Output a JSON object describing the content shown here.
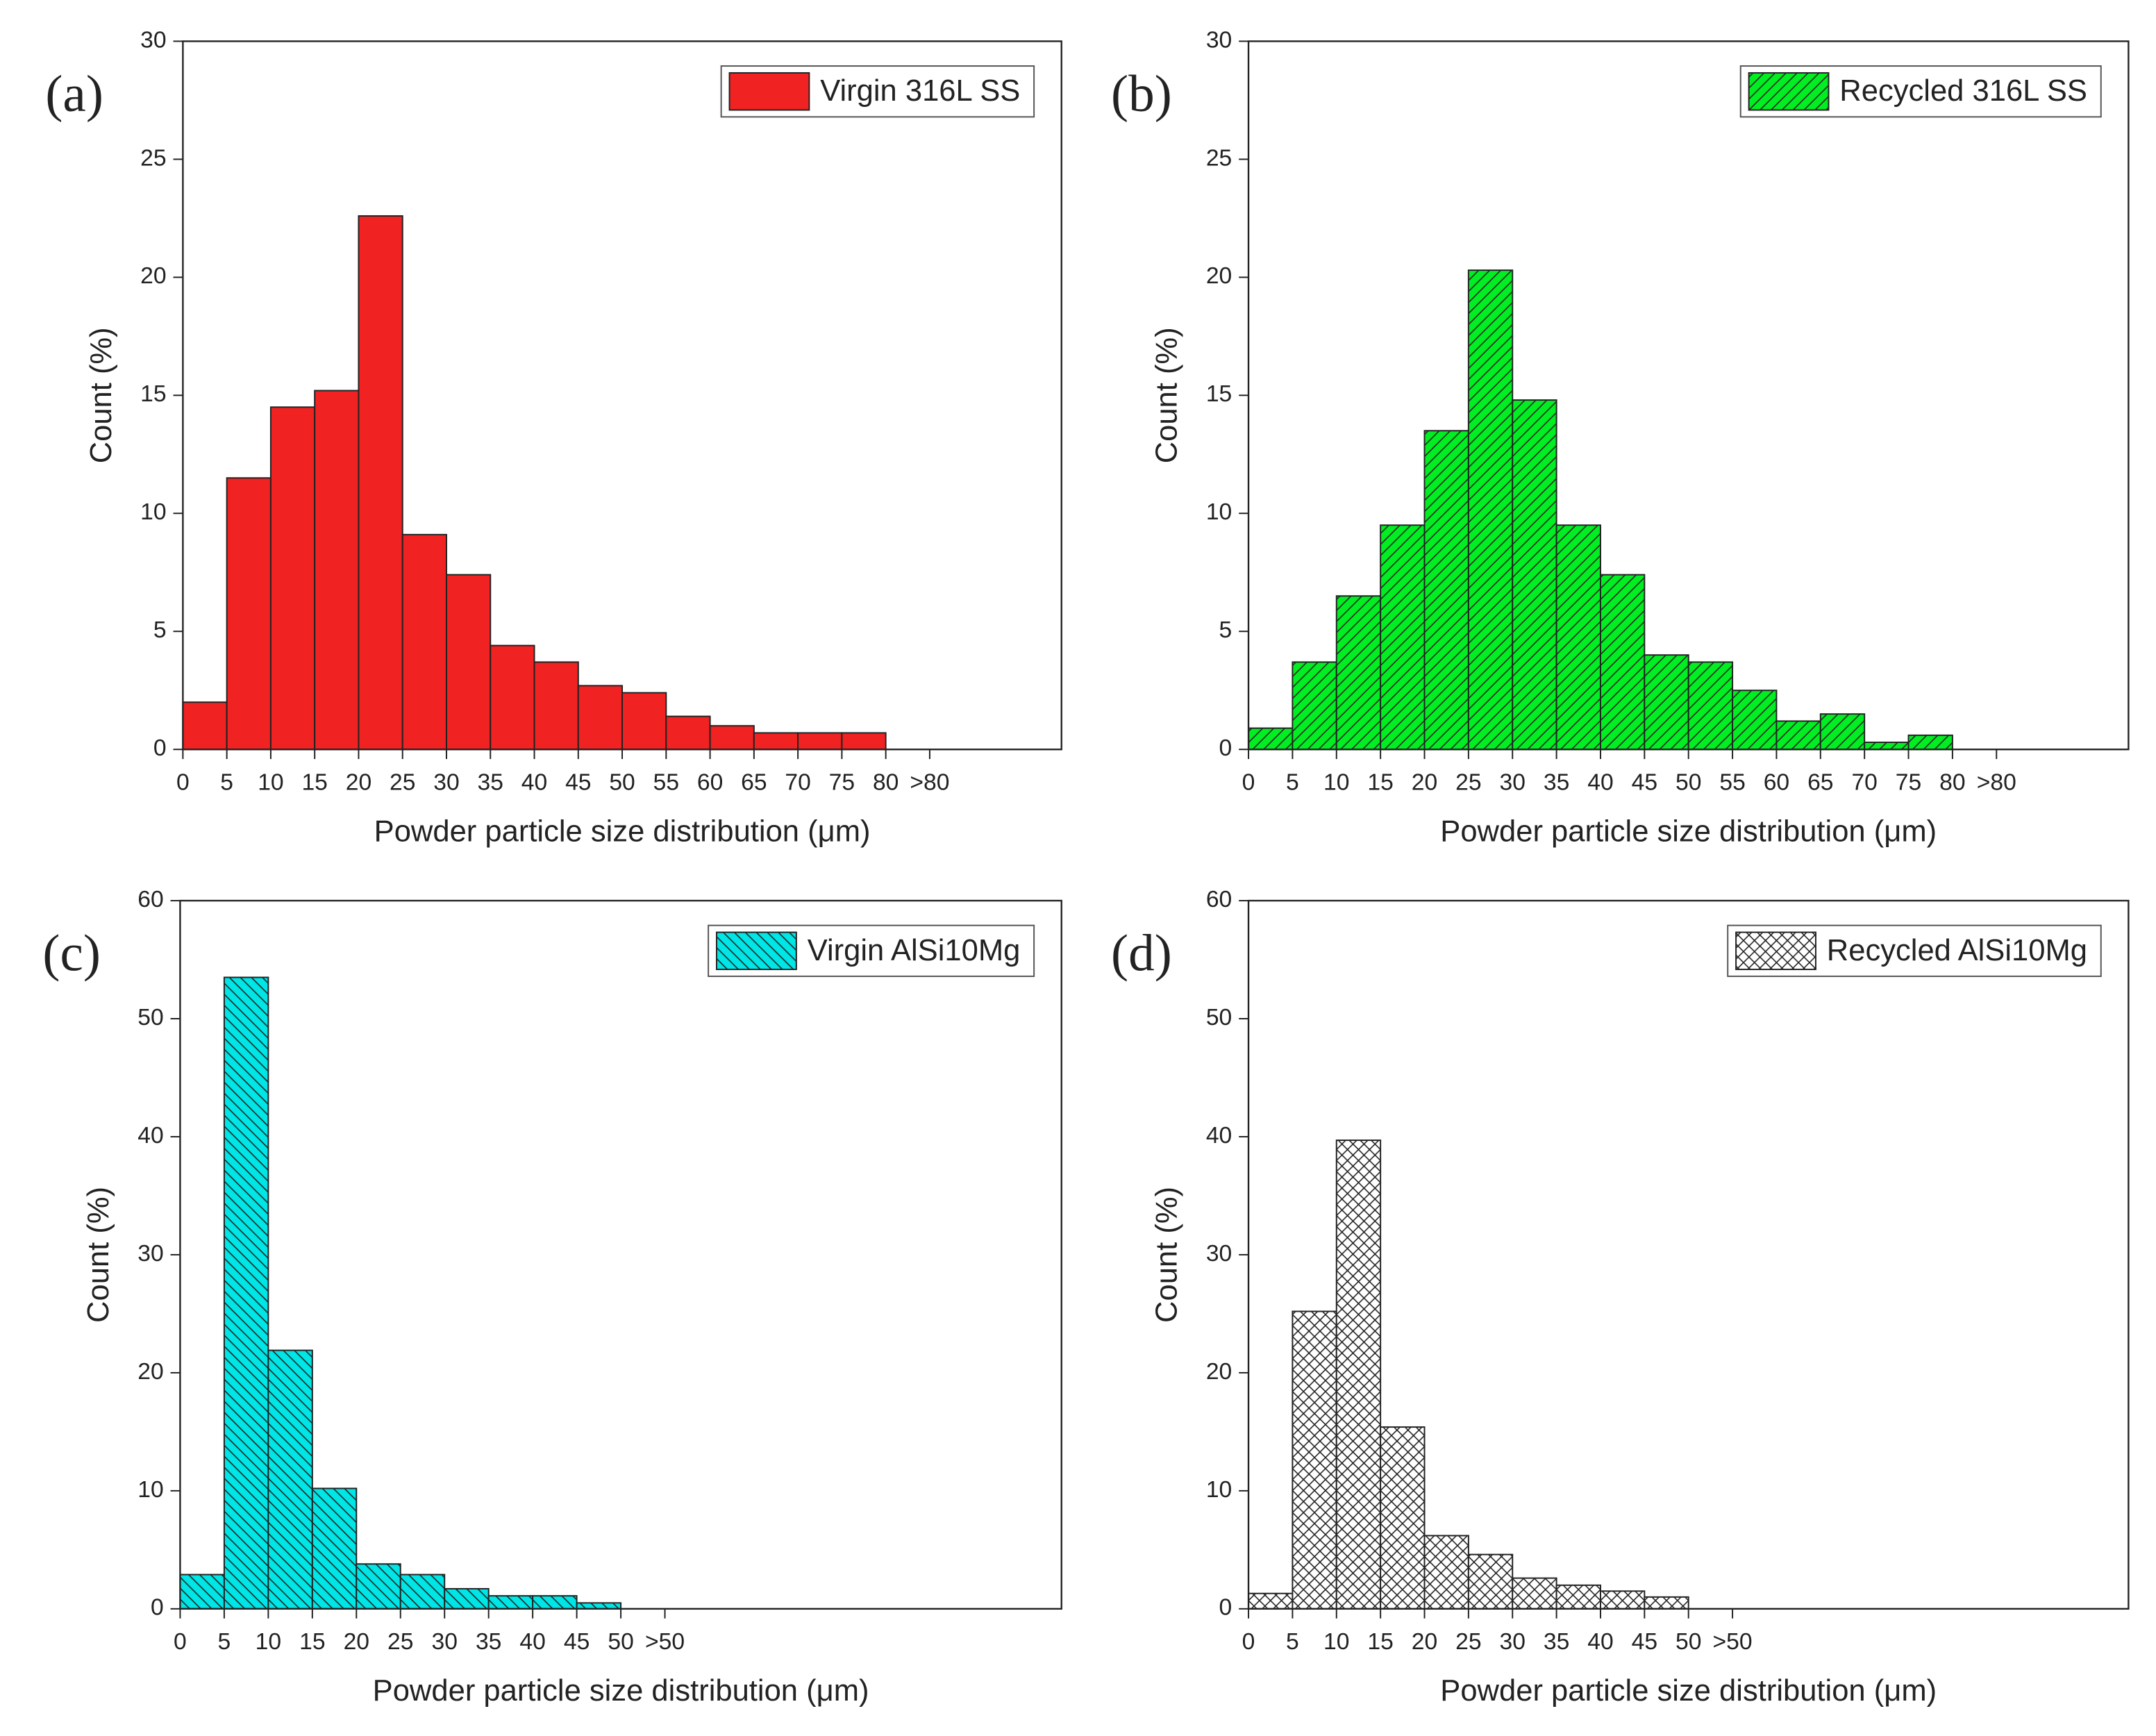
{
  "chart_data": [
    {
      "type": "histogram",
      "panel_label": "(a)",
      "xlabel": "Powder particle size distribution (μm)",
      "ylabel": "Count (%)",
      "bins": [
        0,
        5,
        10,
        15,
        20,
        25,
        30,
        35,
        40,
        45,
        50,
        55,
        60,
        65,
        70,
        75,
        80
      ],
      "series": [
        {
          "name": "Virgin 316L SS",
          "color": "#f02222",
          "hatch": "none",
          "values": [
            2.0,
            11.5,
            14.5,
            15.2,
            22.6,
            9.1,
            7.4,
            4.4,
            3.7,
            2.7,
            2.4,
            1.4,
            1.0,
            0.7,
            0.7,
            0.7
          ]
        }
      ],
      "xlim": [
        0,
        100
      ],
      "ylim": [
        0,
        30
      ],
      "xticks": [
        0,
        5,
        10,
        15,
        20,
        25,
        30,
        35,
        40,
        45,
        50,
        55,
        60,
        65,
        70,
        75,
        80,
        {
          "value": 85,
          "label": ">80"
        }
      ],
      "yticks": [
        0,
        5,
        10,
        15,
        20,
        25,
        30
      ],
      "legend": "upper right"
    },
    {
      "type": "histogram",
      "panel_label": "(b)",
      "xlabel": "Powder particle size distribution (μm)",
      "ylabel": "Count (%)",
      "bins": [
        0,
        5,
        10,
        15,
        20,
        25,
        30,
        35,
        40,
        45,
        50,
        55,
        60,
        65,
        70,
        75,
        80
      ],
      "series": [
        {
          "name": "Recycled 316L SS",
          "color": "#00ee22",
          "hatch": "forward",
          "values": [
            0.9,
            3.7,
            6.5,
            9.5,
            13.5,
            20.3,
            14.8,
            9.5,
            7.4,
            4.0,
            3.7,
            2.5,
            1.2,
            1.5,
            0.3,
            0.6
          ]
        }
      ],
      "xlim": [
        0,
        100
      ],
      "ylim": [
        0,
        30
      ],
      "xticks": [
        0,
        5,
        10,
        15,
        20,
        25,
        30,
        35,
        40,
        45,
        50,
        55,
        60,
        65,
        70,
        75,
        80,
        {
          "value": 85,
          "label": ">80"
        }
      ],
      "yticks": [
        0,
        5,
        10,
        15,
        20,
        25,
        30
      ],
      "legend": "upper right"
    },
    {
      "type": "histogram",
      "panel_label": "(c)",
      "xlabel": "Powder particle size distribution (μm)",
      "ylabel": "Count (%)",
      "bins": [
        0,
        5,
        10,
        15,
        20,
        25,
        30,
        35,
        40,
        45,
        50
      ],
      "series": [
        {
          "name": "Virgin AlSi10Mg",
          "color": "#00e5e5",
          "hatch": "back",
          "values": [
            2.9,
            53.5,
            21.9,
            10.2,
            3.8,
            2.9,
            1.7,
            1.1,
            1.1,
            0.5
          ]
        }
      ],
      "xlim": [
        0,
        100
      ],
      "ylim": [
        0,
        60
      ],
      "xticks": [
        0,
        5,
        10,
        15,
        20,
        25,
        30,
        35,
        40,
        45,
        50,
        {
          "value": 55,
          "label": ">50"
        }
      ],
      "yticks": [
        0,
        10,
        20,
        30,
        40,
        50,
        60
      ],
      "legend": "upper right"
    },
    {
      "type": "histogram",
      "panel_label": "(d)",
      "xlabel": "Powder particle size distribution (μm)",
      "ylabel": "Count (%)",
      "bins": [
        0,
        5,
        10,
        15,
        20,
        25,
        30,
        35,
        40,
        45,
        50
      ],
      "series": [
        {
          "name": "Recycled AlSi10Mg",
          "color": "#ffffff",
          "hatch": "cross",
          "values": [
            1.3,
            25.2,
            39.7,
            15.4,
            6.2,
            4.6,
            2.6,
            2.0,
            1.5,
            1.0
          ]
        }
      ],
      "xlim": [
        0,
        100
      ],
      "ylim": [
        0,
        60
      ],
      "xticks": [
        0,
        5,
        10,
        15,
        20,
        25,
        30,
        35,
        40,
        45,
        50,
        {
          "value": 55,
          "label": ">50"
        }
      ],
      "yticks": [
        0,
        10,
        20,
        30,
        40,
        50,
        60
      ],
      "legend": "upper right"
    }
  ]
}
